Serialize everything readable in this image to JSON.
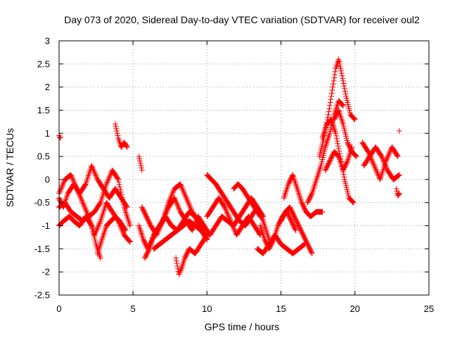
{
  "chart_data": {
    "type": "scatter",
    "title": "Day 073 of 2020, Sidereal Day-to-day VTEC variation (SDTVAR) for receiver oul2",
    "xlabel": "GPS time / hours",
    "ylabel": "SDTVAR / TECUs",
    "xlim": [
      0,
      25
    ],
    "ylim": [
      -2.5,
      3
    ],
    "xticks": [
      0,
      5,
      10,
      15,
      20,
      25
    ],
    "xtick_labels": [
      "0",
      "5",
      "10",
      "15",
      "20",
      "25"
    ],
    "yticks": [
      -2.5,
      -2,
      -1.5,
      -1,
      -0.5,
      0,
      0.5,
      1,
      1.5,
      2,
      2.5,
      3
    ],
    "ytick_labels": [
      "-2.5",
      "-2",
      "-1.5",
      "-1",
      "-0.5",
      "0",
      "0.5",
      "1",
      "1.5",
      "2",
      "2.5",
      "3"
    ],
    "grid": true,
    "marker": "+",
    "series": [
      {
        "name": "SDTVAR",
        "color": "#ff0000",
        "tracks": [
          {
            "x": [
              0,
              0.3,
              0.6,
              1.0,
              1.4,
              1.8,
              2.2,
              2.6,
              3.0,
              3.4,
              3.8,
              4.2,
              4.6
            ],
            "y": [
              -0.4,
              -0.6,
              -0.3,
              -0.1,
              -0.3,
              -0.1,
              0.3,
              0.0,
              -0.2,
              -0.4,
              -0.2,
              -0.4,
              -0.6
            ]
          },
          {
            "x": [
              0,
              0.4,
              0.8,
              1.2,
              1.6,
              2.0,
              2.4,
              2.8,
              3.2,
              3.6,
              4.0,
              4.4,
              4.8
            ],
            "y": [
              -0.3,
              0.0,
              0.1,
              -0.2,
              -0.5,
              -0.8,
              -1.2,
              -0.9,
              -0.5,
              -0.7,
              -0.9,
              -1.2,
              -1.35
            ]
          },
          {
            "x": [
              0,
              0.3,
              0.7,
              1.0,
              1.4,
              1.8,
              2.2,
              2.5,
              2.8
            ],
            "y": [
              -1.0,
              -0.9,
              -0.8,
              -0.9,
              -1.0,
              -0.8,
              -1.0,
              -1.4,
              -1.7
            ]
          },
          {
            "x": [
              0,
              0.4,
              0.8,
              1.2,
              1.6,
              2.0,
              2.4,
              2.8,
              3.2,
              3.6,
              4.0,
              4.4,
              4.8
            ],
            "y": [
              -0.6,
              -0.5,
              -0.7,
              -0.8,
              -0.9,
              -0.8,
              -0.7,
              -0.5,
              -0.1,
              0.2,
              0.0,
              -0.6,
              -1.0
            ]
          },
          {
            "x": [
              2.6,
              2.9,
              3.2,
              3.5,
              3.8,
              4.1,
              4.5
            ],
            "y": [
              -1.6,
              -1.3,
              -1.0,
              -0.9,
              -0.8,
              -0.9,
              -1.1
            ]
          },
          {
            "x": [
              3.8,
              4.0,
              4.2,
              4.4,
              4.6
            ],
            "y": [
              1.2,
              0.9,
              0.7,
              0.8,
              0.7
            ]
          },
          {
            "x": [
              0,
              0.05,
              0.1
            ],
            "y": [
              0.95,
              0.92,
              0.9
            ]
          },
          {
            "x": [
              5.4,
              5.5,
              5.6
            ],
            "y": [
              0.5,
              0.35,
              0.2
            ]
          },
          {
            "x": [
              5.4,
              5.7,
              6.0,
              6.3,
              6.6,
              7.0,
              7.4,
              7.8,
              8.2,
              8.6,
              9.0,
              9.4,
              9.8,
              10.2
            ],
            "y": [
              -1.0,
              -1.3,
              -1.5,
              -1.3,
              -1.1,
              -0.9,
              -0.6,
              -0.4,
              -0.7,
              -0.9,
              -1.1,
              -0.8,
              -1.0,
              -1.2
            ]
          },
          {
            "x": [
              5.8,
              6.1,
              6.4,
              6.8,
              7.2,
              7.6,
              8.0,
              8.4,
              8.8,
              9.2,
              9.6,
              10.0
            ],
            "y": [
              -1.7,
              -1.5,
              -1.2,
              -1.0,
              -0.8,
              -1.0,
              -1.1,
              -0.9,
              -0.7,
              -0.8,
              -1.0,
              -1.3
            ]
          },
          {
            "x": [
              5.6,
              5.9,
              6.2,
              6.6,
              7.0,
              7.4,
              7.8,
              8.2,
              8.6,
              9.0,
              9.4,
              9.8
            ],
            "y": [
              -0.6,
              -0.8,
              -1.0,
              -1.2,
              -0.9,
              -0.5,
              -0.2,
              -0.1,
              -0.4,
              -0.7,
              -0.9,
              -1.1
            ]
          },
          {
            "x": [
              7.9,
              8.1,
              8.3,
              8.5,
              8.8,
              9.2,
              9.6,
              10.0
            ],
            "y": [
              -1.7,
              -2.05,
              -1.9,
              -1.7,
              -1.5,
              -1.6,
              -1.4,
              -1.2
            ]
          },
          {
            "x": [
              6.4,
              6.8,
              7.2,
              7.6,
              8.0,
              8.4,
              8.8,
              9.2,
              9.6,
              10.0
            ],
            "y": [
              -1.5,
              -1.4,
              -1.3,
              -1.2,
              -1.1,
              -1.0,
              -0.9,
              -1.0,
              -1.1,
              -1.3
            ]
          },
          {
            "x": [
              10.0,
              10.3,
              10.6,
              11.0,
              11.4,
              11.8,
              12.2,
              12.6,
              13.0,
              13.4,
              13.8
            ],
            "y": [
              0.1,
              0.0,
              -0.1,
              -0.3,
              -0.5,
              -0.7,
              -0.9,
              -1.0,
              -0.8,
              -0.6,
              -0.8
            ]
          },
          {
            "x": [
              10.0,
              10.4,
              10.8,
              11.2,
              11.6,
              12.0,
              12.4,
              12.8,
              13.2,
              13.6
            ],
            "y": [
              -0.8,
              -0.6,
              -0.4,
              -0.6,
              -0.9,
              -1.2,
              -1.0,
              -0.8,
              -1.0,
              -1.2
            ]
          },
          {
            "x": [
              10.2,
              10.6,
              11.0,
              11.4,
              11.8,
              12.2,
              12.6,
              13.0,
              13.4,
              13.8,
              14.2
            ],
            "y": [
              -1.2,
              -1.0,
              -0.8,
              -0.9,
              -1.0,
              -0.8,
              -0.6,
              -0.4,
              -0.6,
              -0.9,
              -1.3
            ]
          },
          {
            "x": [
              11.8,
              12.1,
              12.4,
              12.8,
              13.2,
              13.6
            ],
            "y": [
              -0.2,
              -0.1,
              -0.2,
              -0.4,
              -0.6,
              -0.8
            ]
          },
          {
            "x": [
              13.6,
              13.9,
              14.2,
              14.5,
              14.8,
              15.1,
              15.4,
              15.7,
              16.0
            ],
            "y": [
              -1.0,
              -1.3,
              -1.5,
              -1.3,
              -1.0,
              -0.8,
              -0.7,
              -0.9,
              -1.1
            ]
          },
          {
            "x": [
              13.4,
              13.8,
              14.2,
              14.6,
              15.0,
              15.4,
              15.8,
              16.2,
              16.6
            ],
            "y": [
              -1.5,
              -1.6,
              -1.4,
              -1.2,
              -1.4,
              -1.5,
              -1.6,
              -1.5,
              -1.4
            ]
          },
          {
            "x": [
              15.2,
              15.5,
              15.8,
              16.1,
              16.4,
              16.7,
              17.0,
              17.4,
              17.8
            ],
            "y": [
              -0.4,
              -0.1,
              0.1,
              -0.2,
              -0.5,
              -0.7,
              -0.8,
              -0.7,
              -0.7
            ]
          },
          {
            "x": [
              15.0,
              15.3,
              15.6,
              15.9,
              16.2,
              16.5,
              16.8,
              17.1
            ],
            "y": [
              -0.9,
              -0.7,
              -0.6,
              -0.8,
              -1.0,
              -1.2,
              -1.4,
              -1.6
            ]
          },
          {
            "x": [
              16.8,
              17.1,
              17.4,
              17.7,
              18.0,
              18.3,
              18.6,
              18.9,
              19.2
            ],
            "y": [
              -0.5,
              -0.3,
              0.0,
              0.3,
              0.7,
              1.0,
              1.4,
              1.7,
              1.6
            ]
          },
          {
            "x": [
              17.6,
              17.9,
              18.2,
              18.5,
              18.7,
              18.9,
              19.1,
              19.4,
              19.7,
              20.0
            ],
            "y": [
              0.5,
              0.9,
              1.4,
              2.0,
              2.4,
              2.6,
              2.3,
              1.8,
              1.4,
              1.3
            ]
          },
          {
            "x": [
              17.8,
              18.1,
              18.4,
              18.7,
              19.0,
              19.3,
              19.6,
              19.9
            ],
            "y": [
              0.9,
              1.2,
              1.3,
              1.0,
              0.5,
              0.0,
              -0.4,
              -0.5
            ]
          },
          {
            "x": [
              18.0,
              18.3,
              18.6,
              18.9,
              19.2,
              19.5,
              19.8
            ],
            "y": [
              0.2,
              0.4,
              0.6,
              0.5,
              0.2,
              0.4,
              0.7
            ]
          },
          {
            "x": [
              18.6,
              18.9,
              19.2,
              19.5,
              19.8,
              20.1
            ],
            "y": [
              1.3,
              1.5,
              1.2,
              0.8,
              0.6,
              0.5
            ]
          },
          {
            "x": [
              20.5,
              20.9,
              21.3,
              21.7,
              22.1,
              22.5,
              22.9
            ],
            "y": [
              0.8,
              0.6,
              0.3,
              0.0,
              0.4,
              0.7,
              0.5
            ]
          },
          {
            "x": [
              20.6,
              21.0,
              21.4,
              21.8,
              22.2,
              22.6,
              23.0
            ],
            "y": [
              0.3,
              0.5,
              0.7,
              0.5,
              0.2,
              0.0,
              0.1
            ]
          },
          {
            "x": [
              22.8,
              22.9,
              23.0
            ],
            "y": [
              -0.2,
              -0.35,
              -0.3
            ]
          },
          {
            "x": [
              23.0
            ],
            "y": [
              1.05
            ]
          }
        ]
      }
    ]
  }
}
